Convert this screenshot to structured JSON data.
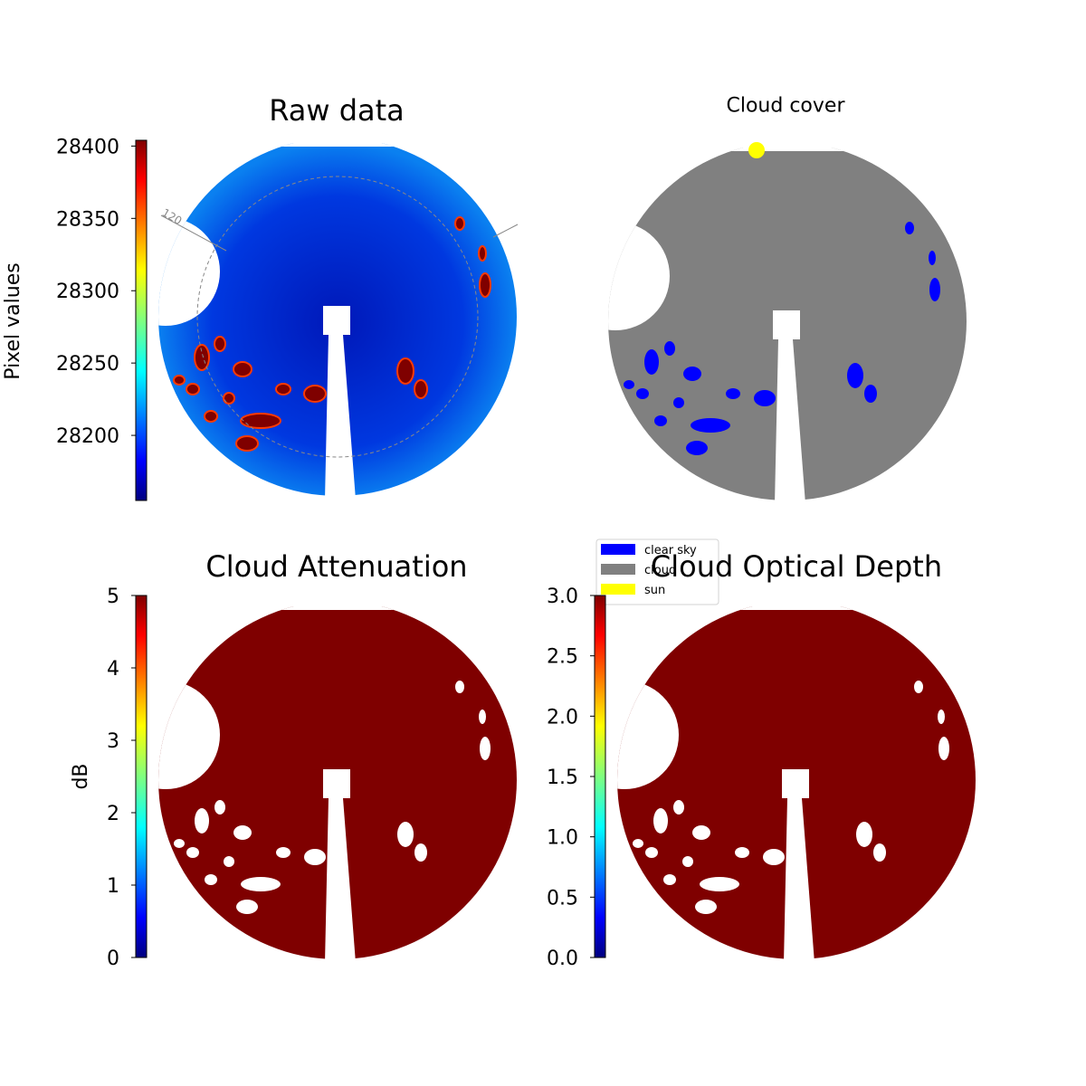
{
  "chart_data": [
    {
      "type": "image",
      "title": "Raw data",
      "annotation": "120",
      "colorbar": {
        "label": "Pixel values",
        "ylim": [
          28155,
          28404
        ],
        "yticks": [
          28200,
          28250,
          28300,
          28350,
          28400
        ]
      }
    },
    {
      "type": "image",
      "title": "Cloud cover",
      "legend": [
        {
          "name": "clear sky",
          "color": "#0000ff"
        },
        {
          "name": "cloud",
          "color": "#808080"
        },
        {
          "name": "sun",
          "color": "#ffff00"
        }
      ]
    },
    {
      "type": "image",
      "title": "Cloud Attenuation",
      "colorbar": {
        "label": "dB",
        "ylim": [
          0,
          5
        ],
        "yticks": [
          0,
          1,
          2,
          3,
          4,
          5
        ]
      }
    },
    {
      "type": "image",
      "title": "Cloud Optical Depth",
      "colorbar": {
        "ylim": [
          0,
          3
        ],
        "yticks": [
          {
            "value": 0,
            "label": "0.0"
          },
          0.5,
          {
            "value": 1,
            "label": "1.0"
          },
          1.5,
          {
            "value": 2,
            "label": "2.0"
          },
          2.5,
          {
            "value": 3,
            "label": "3.0"
          }
        ]
      }
    }
  ]
}
